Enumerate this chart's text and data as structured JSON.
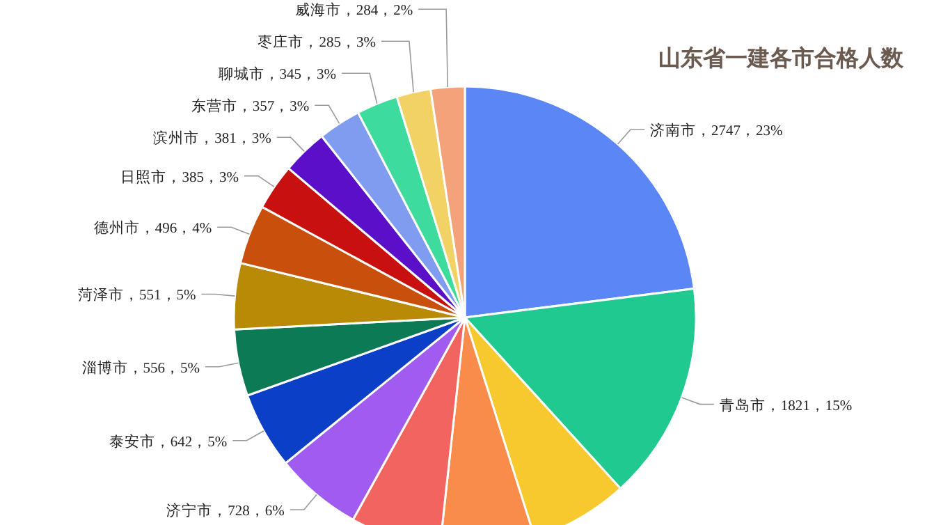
{
  "chart_data": {
    "type": "pie",
    "title": "山东省一建各市合格人数",
    "categories": [
      "济南市",
      "青岛市",
      null,
      null,
      null,
      "济宁市",
      "泰安市",
      "淄博市",
      "菏泽市",
      "德州市",
      "日照市",
      "滨州市",
      "东营市",
      "聊城市",
      "枣庄市",
      "威海市"
    ],
    "values": [
      2747,
      1821,
      820,
      790,
      755,
      728,
      642,
      556,
      551,
      496,
      385,
      381,
      357,
      345,
      285,
      284
    ],
    "value_labels": [
      "，2747，23%",
      "，1821，15%",
      null,
      null,
      null,
      "，728，6%",
      "，642，5%",
      "，556，5%",
      "，551，5%",
      "，496，4%",
      "，385，3%",
      "，381，3%",
      "，357，3%",
      "，345，3%",
      "，285，3%",
      "，284，2%"
    ],
    "colors": [
      "#5a87f5",
      "#1fc98f",
      "#f8c92e",
      "#f98b4b",
      "#f2645f",
      "#a05cf0",
      "#0a3fc6",
      "#0b7a55",
      "#b88a05",
      "#c9500c",
      "#c8100f",
      "#5a10c8",
      "#7f9cf0",
      "#3ddc9d",
      "#f2d264",
      "#f4a27a"
    ]
  }
}
